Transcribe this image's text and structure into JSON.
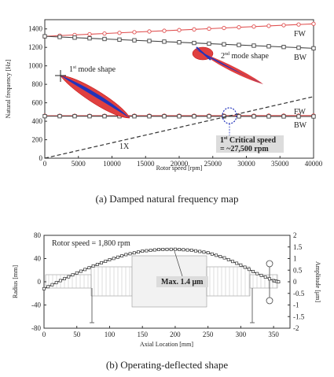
{
  "captions": {
    "a": "(a)  Damped  natural  frequency  map",
    "b": "(b)  Operating-deflected  shape"
  },
  "chart_data": [
    {
      "type": "line",
      "xlabel": "Rotor speed [rpm]",
      "ylabel": "Natural frequency [Hz]",
      "xlim": [
        0,
        40000
      ],
      "ylim": [
        0,
        1500
      ],
      "xticks": [
        0,
        5000,
        10000,
        15000,
        20000,
        25000,
        30000,
        35000,
        40000
      ],
      "yticks": [
        0,
        200,
        400,
        600,
        800,
        1000,
        1200,
        1400
      ],
      "grid": false,
      "series": [
        {
          "name": "FW",
          "color": "#e05050",
          "marker": "circle",
          "x": [
            0,
            40000
          ],
          "y": [
            1320,
            1455
          ]
        },
        {
          "name": "BW",
          "color": "#444444",
          "marker": "square",
          "x": [
            0,
            40000
          ],
          "y": [
            1320,
            1190
          ]
        },
        {
          "name": "FW",
          "color": "#e05050",
          "marker": "circle",
          "x": [
            0,
            40000
          ],
          "y": [
            460,
            462
          ]
        },
        {
          "name": "BW",
          "color": "#444444",
          "marker": "square",
          "x": [
            0,
            40000
          ],
          "y": [
            455,
            452
          ]
        },
        {
          "name": "1X",
          "color": "#333333",
          "style": "dashed",
          "x": [
            0,
            40000
          ],
          "y": [
            0,
            667
          ]
        }
      ],
      "labels": {
        "fw_top": "FW",
        "bw_top": "BW",
        "fw_low": "FW",
        "bw_low": "BW",
        "onex": "1X",
        "mode1_base": "1",
        "mode1_sup": "st",
        "mode1_rest": " mode shape",
        "mode2_base": "2",
        "mode2_sup": "nd",
        "mode2_rest": " mode shape",
        "crit_base": "1",
        "crit_sup": "st",
        "crit_rest": " Critical speed",
        "crit_line2": "= ~27,500 rpm"
      },
      "critical_speed": {
        "x": 27500,
        "y": 460
      }
    },
    {
      "type": "line",
      "title": "Rotor speed = 1,800 rpm",
      "xlabel": "Axial Location [mm]",
      "ylabel": "Radius [mm]",
      "y2label": "Amplitude [μm]",
      "xlim": [
        0,
        375
      ],
      "ylim": [
        -80,
        80
      ],
      "y2lim": [
        -2,
        2
      ],
      "xticks": [
        0,
        50,
        100,
        150,
        200,
        250,
        300,
        350
      ],
      "yticks": [
        -80,
        -40,
        0,
        40,
        80
      ],
      "y2ticks": [
        -2,
        -1.5,
        -1,
        -0.5,
        0,
        0.5,
        1,
        1.5,
        2
      ],
      "y2ticklabels": [
        "-2",
        "-1.5",
        "-1",
        "-0.5",
        "0",
        "0.5",
        "1",
        "1.5",
        "2"
      ],
      "grid": false,
      "series": [
        {
          "name": "Amplitude",
          "color": "#333333",
          "marker": "square",
          "x": [
            0,
            25,
            50,
            75,
            100,
            125,
            150,
            175,
            200,
            225,
            250,
            275,
            300,
            325,
            350,
            360
          ],
          "y": [
            -0.3,
            0.05,
            0.38,
            0.68,
            0.95,
            1.17,
            1.32,
            1.39,
            1.4,
            1.36,
            1.25,
            1.03,
            0.72,
            0.35,
            0.05,
            -0.02
          ]
        }
      ],
      "annotation": "Max. 1.4 μm",
      "max_point": {
        "x": 205,
        "y": 1.4
      }
    }
  ]
}
